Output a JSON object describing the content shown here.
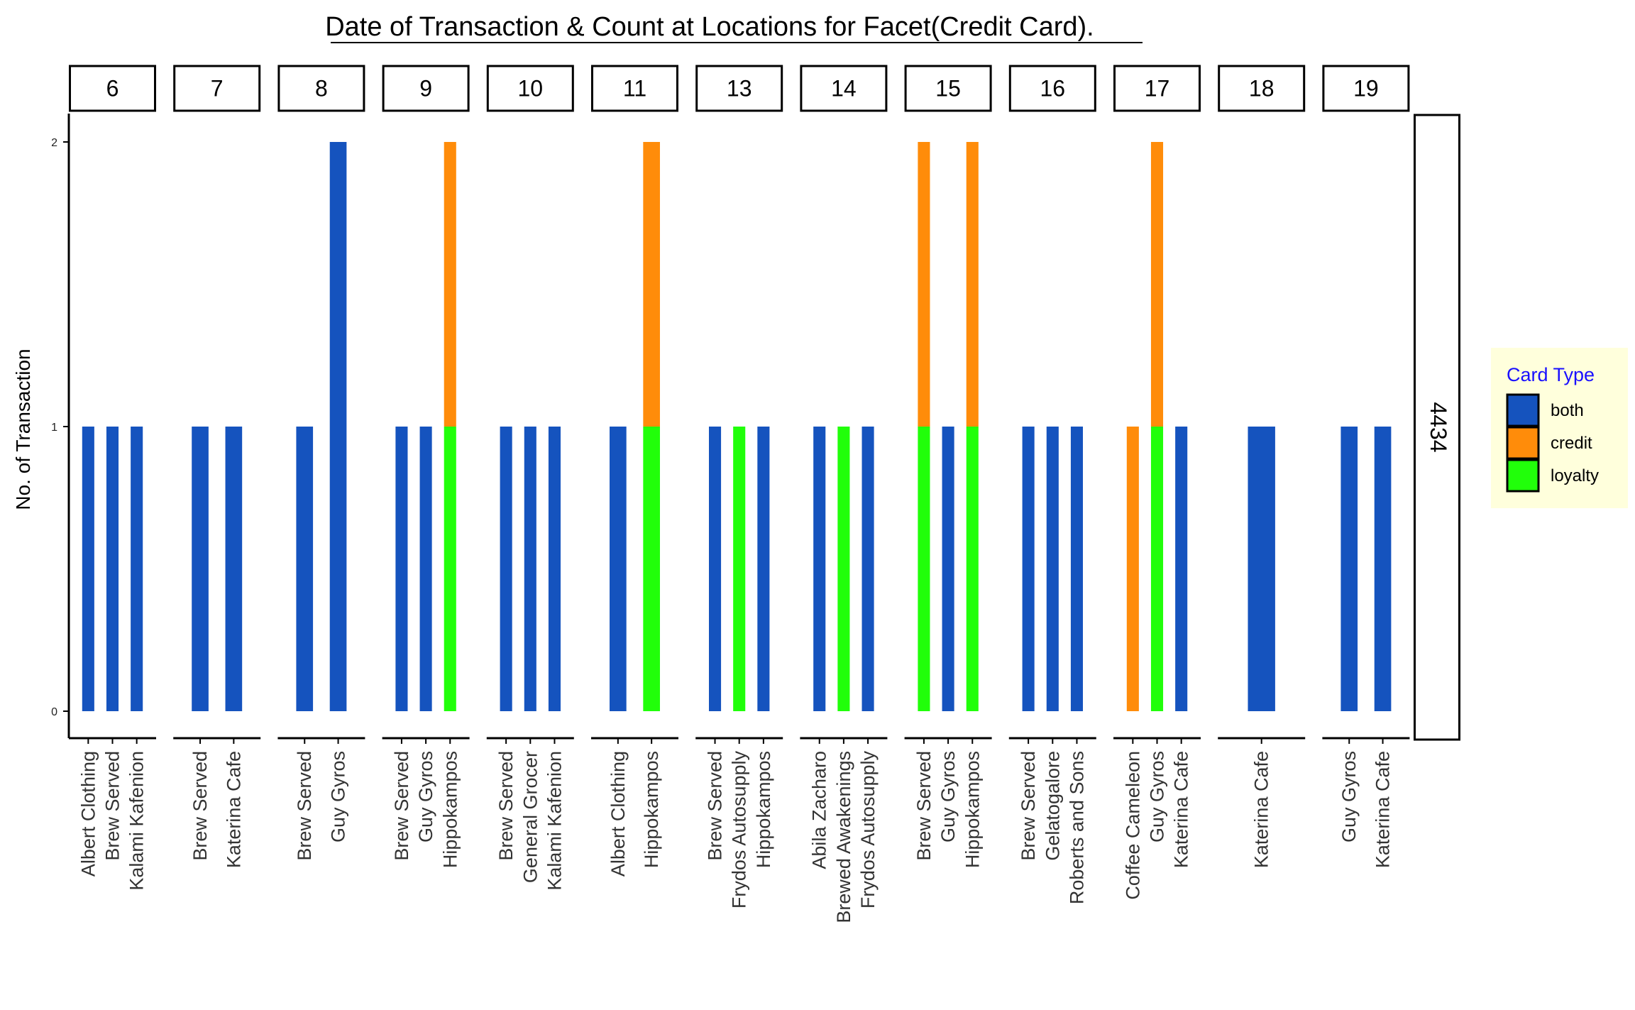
{
  "chart_data": {
    "type": "bar",
    "title": "Date of Transaction & Count at Locations for Facet(Credit Card).",
    "ylabel": "No. of Transaction",
    "xlabel": "",
    "ylim": [
      0,
      2
    ],
    "yticks": [
      0,
      1,
      2
    ],
    "row_facet": "4434",
    "grid": false,
    "legend": {
      "title": "Card Type",
      "position": "right",
      "entries": [
        {
          "name": "both",
          "color": "#1553be"
        },
        {
          "name": "credit",
          "color": "#ff8c0a"
        },
        {
          "name": "loyalty",
          "color": "#21ff0a"
        }
      ]
    },
    "facets": [
      {
        "label": "6",
        "categories": [
          "Albert Clothing",
          "Brew Served",
          "Kalami Kafenion"
        ],
        "stacks": [
          [
            {
              "type": "both",
              "value": 1
            }
          ],
          [
            {
              "type": "both",
              "value": 1
            }
          ],
          [
            {
              "type": "both",
              "value": 1
            }
          ]
        ]
      },
      {
        "label": "7",
        "categories": [
          "Brew Served",
          "Katerina Cafe"
        ],
        "stacks": [
          [
            {
              "type": "both",
              "value": 1
            }
          ],
          [
            {
              "type": "both",
              "value": 1
            }
          ]
        ]
      },
      {
        "label": "8",
        "categories": [
          "Brew Served",
          "Guy Gyros"
        ],
        "stacks": [
          [
            {
              "type": "both",
              "value": 1
            }
          ],
          [
            {
              "type": "both",
              "value": 2
            }
          ]
        ]
      },
      {
        "label": "9",
        "categories": [
          "Brew Served",
          "Guy Gyros",
          "Hippokampos"
        ],
        "stacks": [
          [
            {
              "type": "both",
              "value": 1
            }
          ],
          [
            {
              "type": "both",
              "value": 1
            }
          ],
          [
            {
              "type": "loyalty",
              "value": 1
            },
            {
              "type": "credit",
              "value": 1
            }
          ]
        ]
      },
      {
        "label": "10",
        "categories": [
          "Brew Served",
          "General Grocer",
          "Kalami Kafenion"
        ],
        "stacks": [
          [
            {
              "type": "both",
              "value": 1
            }
          ],
          [
            {
              "type": "both",
              "value": 1
            }
          ],
          [
            {
              "type": "both",
              "value": 1
            }
          ]
        ]
      },
      {
        "label": "11",
        "categories": [
          "Albert Clothing",
          "Hippokampos"
        ],
        "stacks": [
          [
            {
              "type": "both",
              "value": 1
            }
          ],
          [
            {
              "type": "loyalty",
              "value": 1
            },
            {
              "type": "credit",
              "value": 1
            }
          ]
        ]
      },
      {
        "label": "13",
        "categories": [
          "Brew Served",
          "Frydos Autosupply",
          "Hippokampos"
        ],
        "stacks": [
          [
            {
              "type": "both",
              "value": 1
            }
          ],
          [
            {
              "type": "loyalty",
              "value": 1
            }
          ],
          [
            {
              "type": "both",
              "value": 1
            }
          ]
        ]
      },
      {
        "label": "14",
        "categories": [
          "Abila Zacharo",
          "Brewed Awakenings",
          "Frydos Autosupply"
        ],
        "stacks": [
          [
            {
              "type": "both",
              "value": 1
            }
          ],
          [
            {
              "type": "loyalty",
              "value": 1
            }
          ],
          [
            {
              "type": "both",
              "value": 1
            }
          ]
        ]
      },
      {
        "label": "15",
        "categories": [
          "Brew Served",
          "Guy Gyros",
          "Hippokampos"
        ],
        "stacks": [
          [
            {
              "type": "loyalty",
              "value": 1
            },
            {
              "type": "credit",
              "value": 1
            }
          ],
          [
            {
              "type": "both",
              "value": 1
            }
          ],
          [
            {
              "type": "loyalty",
              "value": 1
            },
            {
              "type": "credit",
              "value": 1
            }
          ]
        ]
      },
      {
        "label": "16",
        "categories": [
          "Brew Served",
          "Gelatogalore",
          "Roberts and Sons"
        ],
        "stacks": [
          [
            {
              "type": "both",
              "value": 1
            }
          ],
          [
            {
              "type": "both",
              "value": 1
            }
          ],
          [
            {
              "type": "both",
              "value": 1
            }
          ]
        ]
      },
      {
        "label": "17",
        "categories": [
          "Coffee Cameleon",
          "Guy Gyros",
          "Katerina Cafe"
        ],
        "stacks": [
          [
            {
              "type": "credit",
              "value": 1
            }
          ],
          [
            {
              "type": "loyalty",
              "value": 1
            },
            {
              "type": "credit",
              "value": 1
            }
          ],
          [
            {
              "type": "both",
              "value": 1
            }
          ]
        ]
      },
      {
        "label": "18",
        "categories": [
          "Katerina Cafe"
        ],
        "stacks": [
          [
            {
              "type": "both",
              "value": 1
            }
          ]
        ]
      },
      {
        "label": "19",
        "categories": [
          "Guy Gyros",
          "Katerina Cafe"
        ],
        "stacks": [
          [
            {
              "type": "both",
              "value": 1
            }
          ],
          [
            {
              "type": "both",
              "value": 1
            }
          ]
        ]
      }
    ]
  }
}
